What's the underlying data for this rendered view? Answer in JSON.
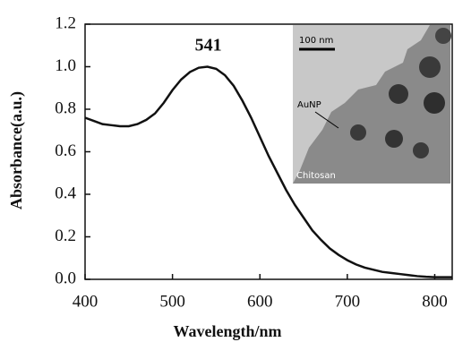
{
  "chart_data": {
    "type": "line",
    "x_label": "Wavelength/nm",
    "y_label": "Absorbance(a.u.)",
    "x": [
      400,
      410,
      420,
      430,
      440,
      450,
      460,
      470,
      480,
      490,
      500,
      510,
      520,
      530,
      540,
      550,
      560,
      570,
      580,
      590,
      600,
      610,
      620,
      630,
      640,
      650,
      660,
      670,
      680,
      690,
      700,
      710,
      720,
      730,
      740,
      750,
      760,
      770,
      780,
      790,
      800,
      810,
      820
    ],
    "series": [
      {
        "color": "#111111",
        "values": [
          0.76,
          0.745,
          0.73,
          0.725,
          0.72,
          0.72,
          0.73,
          0.75,
          0.78,
          0.83,
          0.89,
          0.94,
          0.975,
          0.995,
          1.0,
          0.99,
          0.96,
          0.91,
          0.84,
          0.76,
          0.67,
          0.58,
          0.5,
          0.42,
          0.35,
          0.29,
          0.23,
          0.185,
          0.145,
          0.115,
          0.09,
          0.07,
          0.055,
          0.045,
          0.035,
          0.03,
          0.025,
          0.02,
          0.015,
          0.012,
          0.01,
          0.01,
          0.01
        ]
      }
    ],
    "xlim": [
      400,
      820
    ],
    "xticks": [
      400,
      500,
      600,
      700,
      800
    ],
    "ylim": [
      0,
      1.2
    ],
    "yticks": [
      {
        "value": 0,
        "label": "0.0"
      },
      0.2,
      0.4,
      0.6,
      0.8,
      {
        "value": 1,
        "label": "1.0"
      },
      1.2
    ],
    "peak_label": {
      "x": 541,
      "text": "541"
    },
    "inset": {
      "scale_bar": "100 nm",
      "particle_label": "AuNP",
      "matrix_label": "Chitosan"
    }
  }
}
